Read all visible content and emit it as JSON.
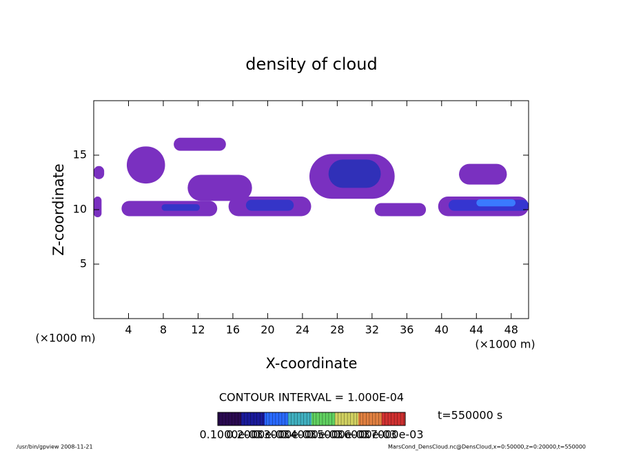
{
  "chart_data": {
    "type": "contour",
    "title": "density of cloud",
    "x_label": "X-coordinate",
    "y_label": "Z-coordinate",
    "x_unit": "(×1000 m)",
    "y_unit": "(×1000 m)",
    "xlim": [
      0,
      50
    ],
    "ylim": [
      0,
      20
    ],
    "xticks": [
      4,
      8,
      12,
      16,
      20,
      24,
      28,
      32,
      36,
      40,
      44,
      48
    ],
    "yticks": [
      5,
      10,
      15
    ],
    "regions": [
      {
        "x": [
          0,
          1.2
        ],
        "z": [
          12.8,
          14
        ],
        "color": "#7a30c0"
      },
      {
        "x": [
          3.8,
          8.2
        ],
        "z": [
          12.4,
          15.8
        ],
        "color": "#7a30c0"
      },
      {
        "x": [
          9.2,
          15.2
        ],
        "z": [
          15.4,
          16.6
        ],
        "color": "#7a30c0"
      },
      {
        "x": [
          10.8,
          18.2
        ],
        "z": [
          10.8,
          13.2
        ],
        "color": "#7a30c0"
      },
      {
        "x": [
          3.2,
          14.2
        ],
        "z": [
          9.4,
          10.8
        ],
        "color": "#7a30c0"
      },
      {
        "x": [
          7.8,
          12.2
        ],
        "z": [
          9.9,
          10.5
        ],
        "color": "#3535c8"
      },
      {
        "x": [
          15.5,
          25
        ],
        "z": [
          9.4,
          11.2
        ],
        "color": "#7a30c0"
      },
      {
        "x": [
          17.5,
          23
        ],
        "z": [
          9.9,
          10.9
        ],
        "color": "#3535c8"
      },
      {
        "x": [
          24.8,
          34.6
        ],
        "z": [
          11,
          15.1
        ],
        "color": "#7a30c0"
      },
      {
        "x": [
          27,
          33
        ],
        "z": [
          12,
          14.6
        ],
        "color": "#3030b8"
      },
      {
        "x": [
          32.3,
          38.2
        ],
        "z": [
          9.4,
          10.6
        ],
        "color": "#7a30c0"
      },
      {
        "x": [
          42,
          47.5
        ],
        "z": [
          12.3,
          14.2
        ],
        "color": "#7a30c0"
      },
      {
        "x": [
          39.6,
          50
        ],
        "z": [
          9.4,
          11.2
        ],
        "color": "#7a30c0"
      },
      {
        "x": [
          40.8,
          50
        ],
        "z": [
          9.9,
          10.9
        ],
        "color": "#3535d0"
      },
      {
        "x": [
          44,
          48.5
        ],
        "z": [
          10.3,
          10.95
        ],
        "color": "#3a7aff"
      },
      {
        "x": [
          0,
          0.9
        ],
        "z": [
          9.3,
          11.2
        ],
        "color": "#7a30c0"
      }
    ],
    "contour_interval": "CONTOUR INTERVAL = 1.000E-04",
    "time_label": "t=550000 s",
    "colorbar": {
      "colors": [
        "#2a0a50",
        "#1a1a9a",
        "#2a6aff",
        "#40b0c0",
        "#60d060",
        "#d0d060",
        "#e08040",
        "#d03030"
      ],
      "labels": [
        "0.1000e-03",
        "0.2000e-03",
        "0.3000e-03",
        "0.4000e-03",
        "0.5000e-03",
        "0.6000e-03",
        "0.7000e-03"
      ]
    },
    "footer_left": "/usr/bin/gpview  2008-11-21",
    "footer_right": "MarsCond_DensCloud.nc@DensCloud,x=0:50000,z=0:20000,t=550000"
  }
}
